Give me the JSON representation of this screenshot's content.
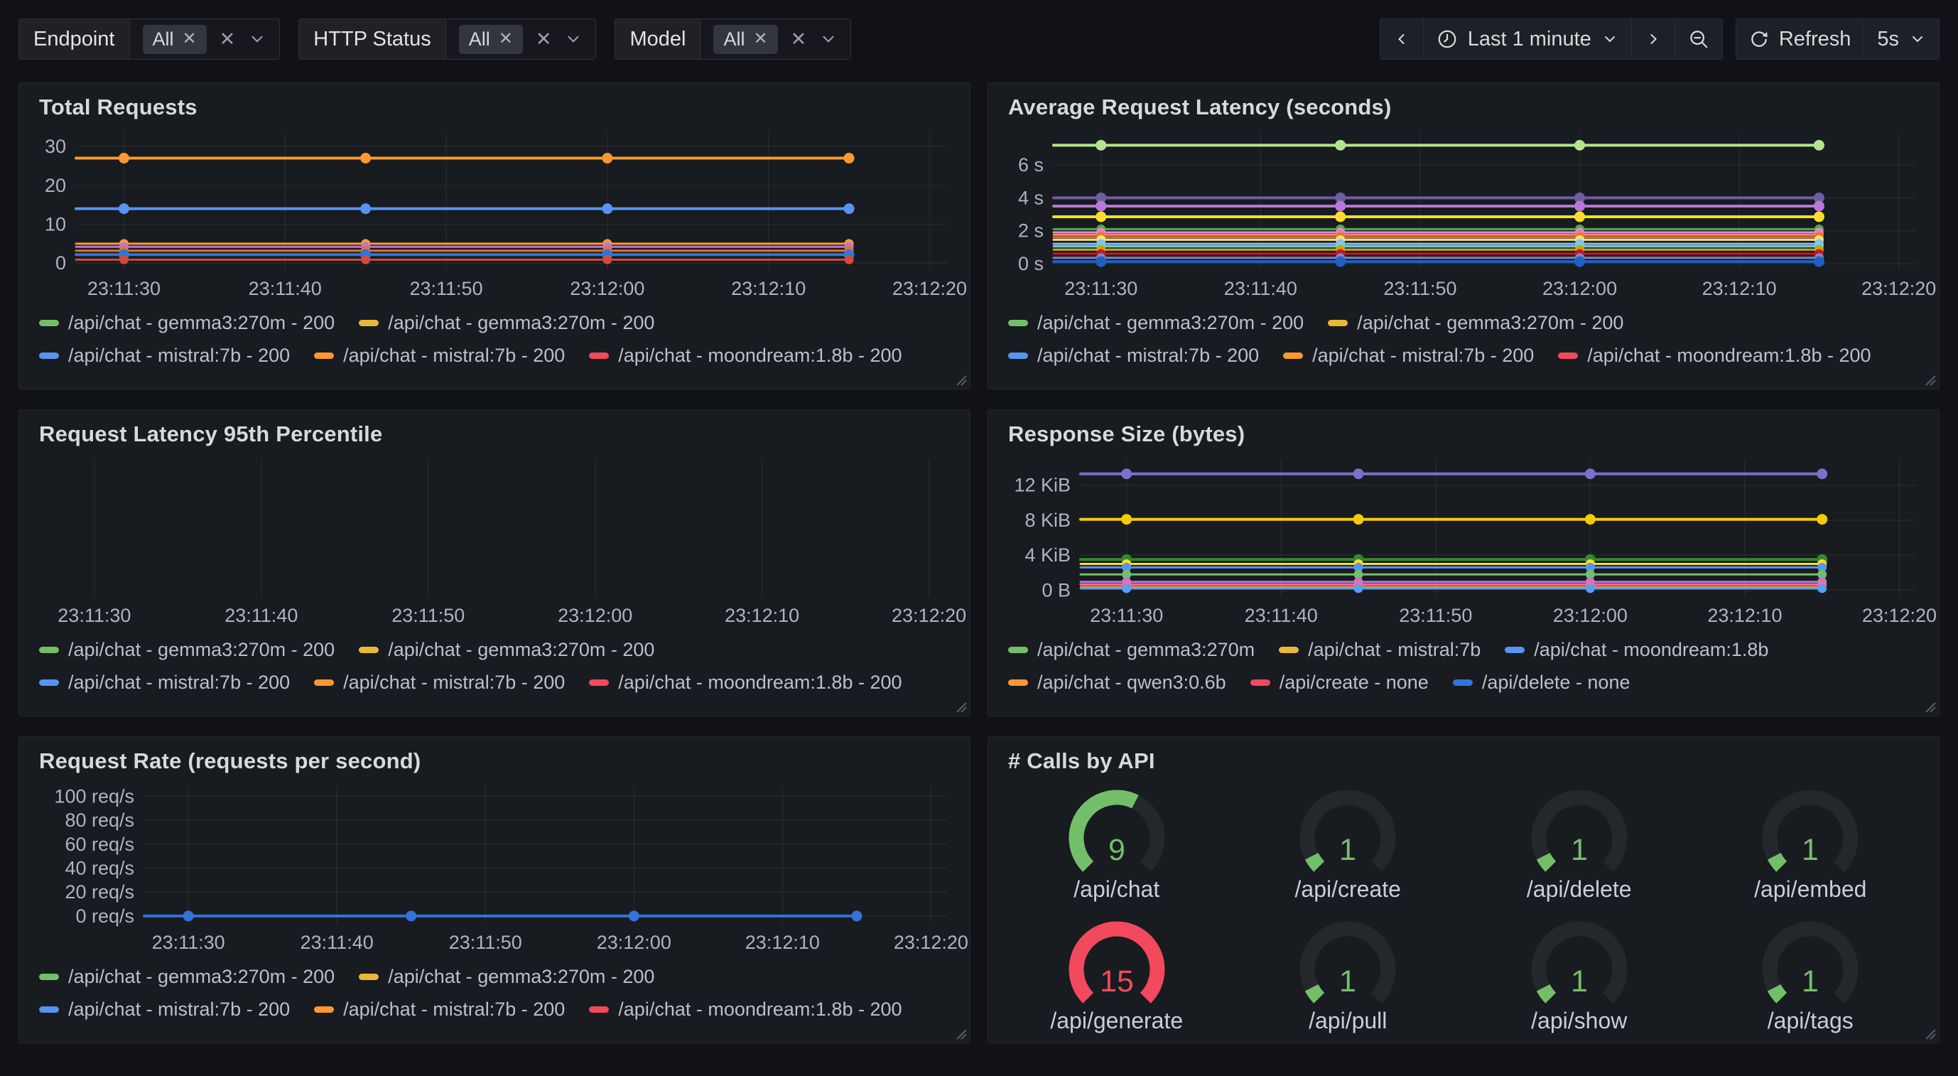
{
  "toolbar": {
    "filters": [
      {
        "label": "Endpoint",
        "chip": "All"
      },
      {
        "label": "HTTP Status",
        "chip": "All"
      },
      {
        "label": "Model",
        "chip": "All"
      }
    ],
    "time_range": "Last 1 minute",
    "refresh_label": "Refresh",
    "interval": "5s"
  },
  "colors": {
    "page_bg": "#111217",
    "panel_bg": "#181b1f",
    "grid": "rgba(204,204,220,0.08)",
    "axis_text": "rgba(204,204,220,0.85)",
    "green": "#73bf69",
    "red": "#f2495c",
    "yellow": "#eab839",
    "blue": "#5794f2",
    "orange": "#ff9830"
  },
  "panels": [
    {
      "title": "Total Requests",
      "chart_data": {
        "type": "line",
        "x_ticks": [
          "23:11:30",
          "23:11:40",
          "23:11:50",
          "23:12:00",
          "23:12:10",
          "23:12:20"
        ],
        "x_tick_pos": [
          0.055,
          0.24,
          0.425,
          0.61,
          0.795,
          0.98
        ],
        "point_pos": [
          0.055,
          0.3325,
          0.61,
          0.8875
        ],
        "y_ticks": [
          {
            "label": "0",
            "value": 0
          },
          {
            "label": "10",
            "value": 10
          },
          {
            "label": "20",
            "value": 20
          },
          {
            "label": "30",
            "value": 30
          }
        ],
        "ylim": [
          -1.6,
          33.5
        ],
        "gutter": 62,
        "series": [
          {
            "color": "#ff9830",
            "value": 27,
            "width": 4
          },
          {
            "color": "#5794f2",
            "value": 14,
            "width": 4
          },
          {
            "color": "#ff9830",
            "value": 5,
            "width": 3
          },
          {
            "color": "#b877d9",
            "value": 4.2,
            "width": 3
          },
          {
            "color": "#e0752d",
            "value": 3.2,
            "width": 3
          },
          {
            "color": "#3274d9",
            "value": 2.2,
            "width": 4
          },
          {
            "color": "#d44a3a",
            "value": 0.9,
            "width": 3
          }
        ]
      },
      "legend": [
        [
          {
            "color": "#73bf69",
            "label": "/api/chat - gemma3:270m - 200"
          },
          {
            "color": "#eab839",
            "label": "/api/chat - gemma3:270m - 200"
          }
        ],
        [
          {
            "color": "#5794f2",
            "label": "/api/chat - mistral:7b - 200"
          },
          {
            "color": "#ff9830",
            "label": "/api/chat - mistral:7b - 200"
          },
          {
            "color": "#f2495c",
            "label": "/api/chat - moondream:1.8b - 200"
          }
        ]
      ]
    },
    {
      "title": "Average Request Latency (seconds)",
      "chart_data": {
        "type": "line",
        "x_ticks": [
          "23:11:30",
          "23:11:40",
          "23:11:50",
          "23:12:00",
          "23:12:10",
          "23:12:20"
        ],
        "x_tick_pos": [
          0.055,
          0.24,
          0.425,
          0.61,
          0.795,
          0.98
        ],
        "point_pos": [
          0.055,
          0.3325,
          0.61,
          0.8875
        ],
        "y_ticks": [
          {
            "label": "0 s",
            "value": 0
          },
          {
            "label": "2 s",
            "value": 2
          },
          {
            "label": "4 s",
            "value": 4
          },
          {
            "label": "6 s",
            "value": 6
          }
        ],
        "ylim": [
          -0.35,
          7.95
        ],
        "gutter": 74,
        "series": [
          {
            "color": "#b5e48c",
            "value": 7.2,
            "width": 4
          },
          {
            "color": "#705da0",
            "value": 4.0,
            "width": 4
          },
          {
            "color": "#b877d9",
            "value": 3.5,
            "width": 4
          },
          {
            "color": "#fade2a",
            "value": 2.85,
            "width": 4
          },
          {
            "color": "#56a64b",
            "value": 2.1,
            "width": 3
          },
          {
            "color": "#dd8ae2",
            "value": 1.9,
            "width": 3
          },
          {
            "color": "#ff7b6b",
            "value": 1.75,
            "width": 3
          },
          {
            "color": "#e0752d",
            "value": 1.6,
            "width": 3
          },
          {
            "color": "#f3e27a",
            "value": 1.45,
            "width": 3
          },
          {
            "color": "#8ab8ff",
            "value": 1.2,
            "width": 3
          },
          {
            "color": "#6ed0e0",
            "value": 1.05,
            "width": 3
          },
          {
            "color": "#cfa602",
            "value": 0.85,
            "width": 3
          },
          {
            "color": "#c4162a",
            "value": 0.6,
            "width": 3
          },
          {
            "color": "#8683c0",
            "value": 0.35,
            "width": 3
          },
          {
            "color": "#1f60c4",
            "value": 0.12,
            "width": 4
          }
        ]
      },
      "legend": [
        [
          {
            "color": "#73bf69",
            "label": "/api/chat - gemma3:270m - 200"
          },
          {
            "color": "#eab839",
            "label": "/api/chat - gemma3:270m - 200"
          }
        ],
        [
          {
            "color": "#5794f2",
            "label": "/api/chat - mistral:7b - 200"
          },
          {
            "color": "#ff9830",
            "label": "/api/chat - mistral:7b - 200"
          },
          {
            "color": "#f2495c",
            "label": "/api/chat - moondream:1.8b - 200"
          }
        ]
      ]
    },
    {
      "title": "Request Latency 95th Percentile",
      "chart_data": {
        "type": "line",
        "x_ticks": [
          "23:11:30",
          "23:11:40",
          "23:11:50",
          "23:12:00",
          "23:12:10",
          "23:12:20"
        ],
        "x_tick_pos": [
          0.055,
          0.24,
          0.425,
          0.61,
          0.795,
          0.98
        ],
        "point_pos": [],
        "y_ticks": [],
        "ylim": [
          0,
          1
        ],
        "gutter": 18,
        "series": []
      },
      "legend": [
        [
          {
            "color": "#73bf69",
            "label": "/api/chat - gemma3:270m - 200"
          },
          {
            "color": "#eab839",
            "label": "/api/chat - gemma3:270m - 200"
          }
        ],
        [
          {
            "color": "#5794f2",
            "label": "/api/chat - mistral:7b - 200"
          },
          {
            "color": "#ff9830",
            "label": "/api/chat - mistral:7b - 200"
          },
          {
            "color": "#f2495c",
            "label": "/api/chat - moondream:1.8b - 200"
          }
        ]
      ]
    },
    {
      "title": "Response Size (bytes)",
      "chart_data": {
        "type": "line",
        "x_ticks": [
          "23:11:30",
          "23:11:40",
          "23:11:50",
          "23:12:00",
          "23:12:10",
          "23:12:20"
        ],
        "x_tick_pos": [
          0.055,
          0.24,
          0.425,
          0.61,
          0.795,
          0.98
        ],
        "point_pos": [
          0.055,
          0.3325,
          0.61,
          0.8875
        ],
        "y_ticks": [
          {
            "label": "0 B",
            "value": 0
          },
          {
            "label": "4 KiB",
            "value": 4
          },
          {
            "label": "8 KiB",
            "value": 8
          },
          {
            "label": "12 KiB",
            "value": 12
          }
        ],
        "ylim": [
          -0.7,
          14.9
        ],
        "gutter": 112,
        "series": [
          {
            "color": "#7b70c9",
            "value": 13.3,
            "width": 4
          },
          {
            "color": "#f2cc0c",
            "value": 8.1,
            "width": 4
          },
          {
            "color": "#37872d",
            "value": 3.5,
            "width": 4
          },
          {
            "color": "#fade2a",
            "value": 3.0,
            "width": 3
          },
          {
            "color": "#5794f2",
            "value": 2.6,
            "width": 3
          },
          {
            "color": "#73bf69",
            "value": 1.8,
            "width": 3
          },
          {
            "color": "#b877d9",
            "value": 0.95,
            "width": 3
          },
          {
            "color": "#f06ea0",
            "value": 0.65,
            "width": 3
          },
          {
            "color": "#ff9830",
            "value": 0.4,
            "width": 2
          },
          {
            "color": "#57a0f2",
            "value": 0.2,
            "width": 3
          }
        ]
      },
      "legend": [
        [
          {
            "color": "#73bf69",
            "label": "/api/chat - gemma3:270m"
          },
          {
            "color": "#eab839",
            "label": "/api/chat - mistral:7b"
          },
          {
            "color": "#5794f2",
            "label": "/api/chat - moondream:1.8b"
          }
        ],
        [
          {
            "color": "#ff9830",
            "label": "/api/chat - qwen3:0.6b"
          },
          {
            "color": "#f2495c",
            "label": "/api/create - none"
          },
          {
            "color": "#3274d9",
            "label": "/api/delete - none"
          }
        ]
      ]
    },
    {
      "title": "Request Rate (requests per second)",
      "chart_data": {
        "type": "line",
        "x_ticks": [
          "23:11:30",
          "23:11:40",
          "23:11:50",
          "23:12:00",
          "23:12:10",
          "23:12:20"
        ],
        "x_tick_pos": [
          0.055,
          0.24,
          0.425,
          0.61,
          0.795,
          0.98
        ],
        "point_pos": [
          0.055,
          0.3325,
          0.61,
          0.8875
        ],
        "y_ticks": [
          {
            "label": "0 req/s",
            "value": 0
          },
          {
            "label": "20 req/s",
            "value": 20
          },
          {
            "label": "40 req/s",
            "value": 40
          },
          {
            "label": "60 req/s",
            "value": 60
          },
          {
            "label": "80 req/s",
            "value": 80
          },
          {
            "label": "100 req/s",
            "value": 100
          }
        ],
        "ylim": [
          -6,
          108
        ],
        "gutter": 158,
        "series": [
          {
            "color": "#3274d9",
            "value": 0,
            "width": 4
          }
        ]
      },
      "legend": [
        [
          {
            "color": "#73bf69",
            "label": "/api/chat - gemma3:270m - 200"
          },
          {
            "color": "#eab839",
            "label": "/api/chat - gemma3:270m - 200"
          }
        ],
        [
          {
            "color": "#5794f2",
            "label": "/api/chat - mistral:7b - 200"
          },
          {
            "color": "#ff9830",
            "label": "/api/chat - mistral:7b - 200"
          },
          {
            "color": "#f2495c",
            "label": "/api/chat - moondream:1.8b - 200"
          }
        ]
      ]
    },
    {
      "title": "# Calls by API",
      "chart_data": {
        "type": "gauge",
        "items": [
          {
            "label": "/api/chat",
            "value": "9",
            "fraction": 0.6,
            "color": "#73bf69"
          },
          {
            "label": "/api/create",
            "value": "1",
            "fraction": 0.067,
            "color": "#73bf69"
          },
          {
            "label": "/api/delete",
            "value": "1",
            "fraction": 0.067,
            "color": "#73bf69"
          },
          {
            "label": "/api/embed",
            "value": "1",
            "fraction": 0.067,
            "color": "#73bf69"
          },
          {
            "label": "/api/generate",
            "value": "15",
            "fraction": 1.0,
            "color": "#f2495c"
          },
          {
            "label": "/api/pull",
            "value": "1",
            "fraction": 0.067,
            "color": "#73bf69"
          },
          {
            "label": "/api/show",
            "value": "1",
            "fraction": 0.067,
            "color": "#73bf69"
          },
          {
            "label": "/api/tags",
            "value": "1",
            "fraction": 0.067,
            "color": "#73bf69"
          }
        ],
        "track_color": "#24272c"
      }
    }
  ]
}
